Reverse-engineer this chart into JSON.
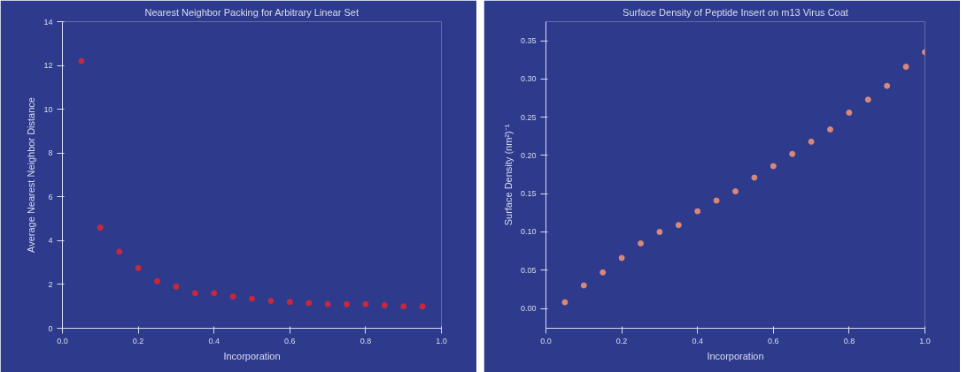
{
  "chart_data": [
    {
      "type": "scatter",
      "title": "Nearest Neighbor Packing for Arbitrary Linear Set",
      "xlabel": "Incorporation",
      "ylabel": "Average Nearest Neighbor Distance",
      "x": [
        0.05,
        0.1,
        0.15,
        0.2,
        0.25,
        0.3,
        0.35,
        0.4,
        0.45,
        0.5,
        0.55,
        0.6,
        0.65,
        0.7,
        0.75,
        0.8,
        0.85,
        0.9,
        0.95
      ],
      "series": [
        {
          "color": "#c8283c",
          "values": [
            12.2,
            4.6,
            3.5,
            2.75,
            2.15,
            1.9,
            1.6,
            1.6,
            1.45,
            1.35,
            1.25,
            1.2,
            1.15,
            1.1,
            1.1,
            1.1,
            1.05,
            1.0,
            1.0
          ]
        }
      ],
      "xlim": [
        0,
        1.0
      ],
      "xticks": [
        {
          "value": 0,
          "label": "0.0"
        },
        {
          "value": 0.2,
          "label": "0.2"
        },
        {
          "value": 0.4,
          "label": "0.4"
        },
        {
          "value": 0.6,
          "label": "0.6"
        },
        {
          "value": 0.8,
          "label": "0.8"
        },
        {
          "value": 1,
          "label": "1.0"
        }
      ],
      "ylim": [
        0,
        14
      ],
      "yticks": [
        0,
        2,
        4,
        6,
        8,
        10,
        12,
        14
      ],
      "marker": "circle"
    },
    {
      "type": "scatter",
      "title": "Surface Density of Peptide Insert on m13 Virus Coat",
      "xlabel": "Incorporation",
      "ylabel": "Surface Density (nm²)⁻¹",
      "x": [
        0.05,
        0.1,
        0.15,
        0.2,
        0.25,
        0.3,
        0.35,
        0.4,
        0.45,
        0.5,
        0.55,
        0.6,
        0.65,
        0.7,
        0.75,
        0.8,
        0.85,
        0.9,
        0.95,
        1.0
      ],
      "series": [
        {
          "color": "#d88878",
          "values": [
            0.008,
            0.03,
            0.047,
            0.066,
            0.085,
            0.1,
            0.109,
            0.127,
            0.141,
            0.153,
            0.171,
            0.186,
            0.202,
            0.218,
            0.234,
            0.256,
            0.273,
            0.291,
            0.316,
            0.335
          ]
        }
      ],
      "xlim": [
        0,
        1.0
      ],
      "xticks": [
        {
          "value": 0,
          "label": "0.0"
        },
        {
          "value": 0.2,
          "label": "0.2"
        },
        {
          "value": 0.4,
          "label": "0.4"
        },
        {
          "value": 0.6,
          "label": "0.6"
        },
        {
          "value": 0.8,
          "label": "0.8"
        },
        {
          "value": 1,
          "label": "1.0"
        }
      ],
      "ylim": [
        -0.026,
        0.375
      ],
      "yticks": [
        {
          "value": 0,
          "label": "0.00"
        },
        0.05,
        {
          "value": 0.1,
          "label": "0.10"
        },
        0.15,
        {
          "value": 0.2,
          "label": "0.20"
        },
        0.25,
        {
          "value": 0.3,
          "label": "0.30"
        },
        0.35
      ],
      "marker": "circle"
    }
  ]
}
